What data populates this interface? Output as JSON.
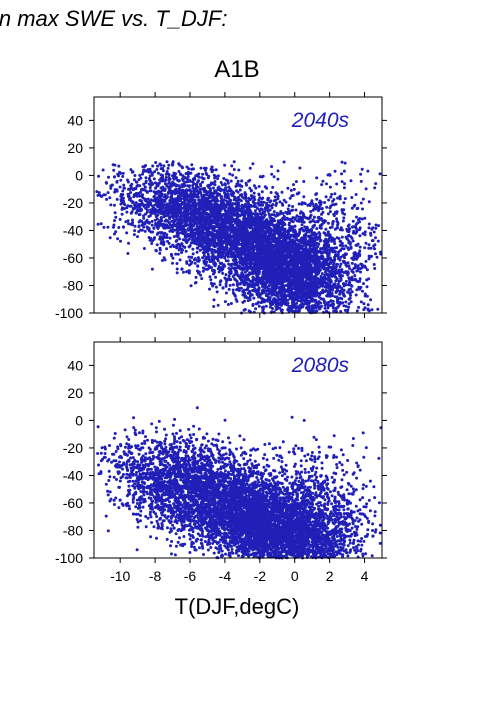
{
  "header": {
    "title": "in max SWE vs. T_DJF:",
    "scenario": "A1B"
  },
  "xlabel": "T(DJF,degC)",
  "colors": {
    "points": "#2020b8",
    "axis": "#000000"
  },
  "chart_data": [
    {
      "type": "scatter",
      "title": "2040s",
      "xlabel": "",
      "ylabel": "",
      "xlim": [
        -11.5,
        5
      ],
      "ylim": [
        -100,
        57
      ],
      "xticks": [
        -10,
        -8,
        -6,
        -4,
        -2,
        0,
        2,
        4
      ],
      "yticks": [
        40,
        20,
        0,
        -20,
        -40,
        -60,
        -80,
        -100
      ],
      "ytick_labels": [
        "40",
        "20",
        "0",
        "-20",
        "-40",
        "-60",
        "-80",
        "-100"
      ],
      "point_color": "#2020b8",
      "cloud": {
        "n": 7000,
        "clusters": [
          {
            "w": 0.45,
            "mx": -3.0,
            "my": -45,
            "sx": 2.6,
            "sy": 22,
            "rho": -0.5
          },
          {
            "w": 0.3,
            "mx": -0.5,
            "my": -70,
            "sx": 1.6,
            "sy": 18,
            "rho": -0.3
          },
          {
            "w": 0.15,
            "mx": -6.5,
            "my": -25,
            "sx": 2.2,
            "sy": 15,
            "rho": -0.4
          },
          {
            "w": 0.1,
            "mx": 2.0,
            "my": -55,
            "sx": 1.6,
            "sy": 30,
            "rho": 0.0
          }
        ]
      }
    },
    {
      "type": "scatter",
      "title": "2080s",
      "xlabel": "T(DJF,degC)",
      "ylabel": "",
      "xlim": [
        -11.5,
        5
      ],
      "ylim": [
        -100,
        57
      ],
      "xticks": [
        -10,
        -8,
        -6,
        -4,
        -2,
        0,
        2,
        4
      ],
      "xtick_labels": [
        "-10",
        "-8",
        "-6",
        "-4",
        "-2",
        "0",
        "2",
        "4"
      ],
      "yticks": [
        40,
        20,
        0,
        -20,
        -40,
        -60,
        -80,
        -100
      ],
      "ytick_labels": [
        "40",
        "20",
        "0",
        "-20",
        "-40",
        "-60",
        "-80",
        "-100"
      ],
      "point_color": "#2020b8",
      "cloud": {
        "n": 7000,
        "clusters": [
          {
            "w": 0.45,
            "mx": -3.5,
            "my": -62,
            "sx": 2.6,
            "sy": 20,
            "rho": -0.4
          },
          {
            "w": 0.3,
            "mx": -1.0,
            "my": -82,
            "sx": 1.8,
            "sy": 14,
            "rho": -0.3
          },
          {
            "w": 0.15,
            "mx": -7.0,
            "my": -42,
            "sx": 2.0,
            "sy": 16,
            "rho": -0.3
          },
          {
            "w": 0.1,
            "mx": 1.5,
            "my": -70,
            "sx": 1.6,
            "sy": 25,
            "rho": 0.0
          }
        ]
      }
    }
  ]
}
